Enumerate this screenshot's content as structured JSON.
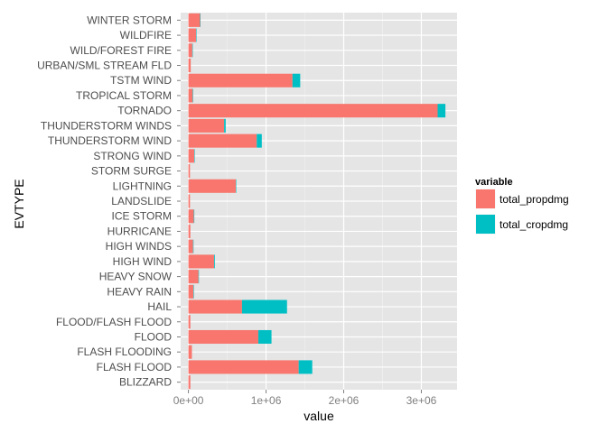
{
  "chart_data": {
    "type": "bar",
    "orientation": "horizontal",
    "stacked": true,
    "categories": [
      "BLIZZARD",
      "FLASH FLOOD",
      "FLASH FLOODING",
      "FLOOD",
      "FLOOD/FLASH FLOOD",
      "HAIL",
      "HEAVY RAIN",
      "HEAVY SNOW",
      "HIGH WIND",
      "HIGH WINDS",
      "HURRICANE",
      "ICE STORM",
      "LANDSLIDE",
      "LIGHTNING",
      "STORM SURGE",
      "STRONG WIND",
      "THUNDERSTORM WIND",
      "THUNDERSTORM WINDS",
      "TORNADO",
      "TROPICAL STORM",
      "TSTM WIND",
      "URBAN/SML STREAM FLD",
      "WILD/FOREST FIRE",
      "WILDFIRE",
      "WINTER STORM"
    ],
    "series": [
      {
        "name": "total_propdmg",
        "color": "#F8766D",
        "values": [
          25000,
          1420000,
          45000,
          900000,
          25000,
          690000,
          65000,
          130000,
          330000,
          60000,
          25000,
          70000,
          20000,
          610000,
          20000,
          75000,
          880000,
          460000,
          3210000,
          55000,
          1340000,
          30000,
          50000,
          100000,
          150000
        ]
      },
      {
        "name": "total_cropdmg",
        "color": "#00BFC4",
        "values": [
          0,
          175000,
          0,
          170000,
          0,
          580000,
          5000,
          5000,
          10000,
          5000,
          0,
          5000,
          0,
          2000,
          0,
          3000,
          65000,
          20000,
          100000,
          5000,
          100000,
          0,
          5000,
          5000,
          5000
        ]
      }
    ],
    "xlabel": "value",
    "ylabel": "EVTYPE",
    "xlim": [
      -100000,
      3460000
    ],
    "xticks": [
      0,
      1000000,
      2000000,
      3000000
    ],
    "xtick_labels": [
      "0e+00",
      "1e+06",
      "2e+06",
      "3e+06"
    ],
    "legend": {
      "title": "variable",
      "position": "right"
    },
    "background": "#E5E5E5",
    "grid": true
  }
}
